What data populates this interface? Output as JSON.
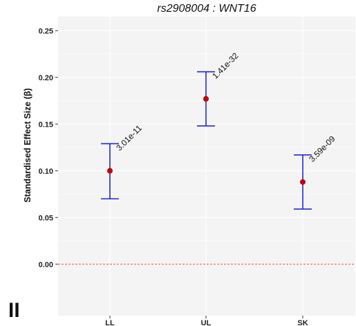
{
  "panel_label": "II",
  "chart_data": {
    "type": "scatter",
    "subtype": "point-errorbar",
    "title": "rs2908004 : WNT16",
    "xlabel": "",
    "ylabel": "Standardised Effect Size (β)",
    "categories": [
      "LL",
      "UL",
      "SK"
    ],
    "points": [
      {
        "category": "LL",
        "estimate": 0.1,
        "lower": 0.07,
        "upper": 0.129,
        "pvalue": "3.01e-11"
      },
      {
        "category": "UL",
        "estimate": 0.177,
        "lower": 0.148,
        "upper": 0.206,
        "pvalue": "1.41e-32"
      },
      {
        "category": "SK",
        "estimate": 0.088,
        "lower": 0.059,
        "upper": 0.117,
        "pvalue": "3.59e-09"
      }
    ],
    "ylim": [
      -0.055,
      0.265
    ],
    "yticks": [
      "0.00",
      "0.05",
      "0.10",
      "0.15",
      "0.20",
      "0.25"
    ],
    "reference_line": {
      "y": 0.0,
      "style": "dashed"
    },
    "grid": true,
    "colors": {
      "point": "#c00000",
      "errorbar": "#1f2bd1",
      "reference": "#e0502e",
      "panel": "#f4f4f4",
      "grid": "#ffffff"
    }
  }
}
